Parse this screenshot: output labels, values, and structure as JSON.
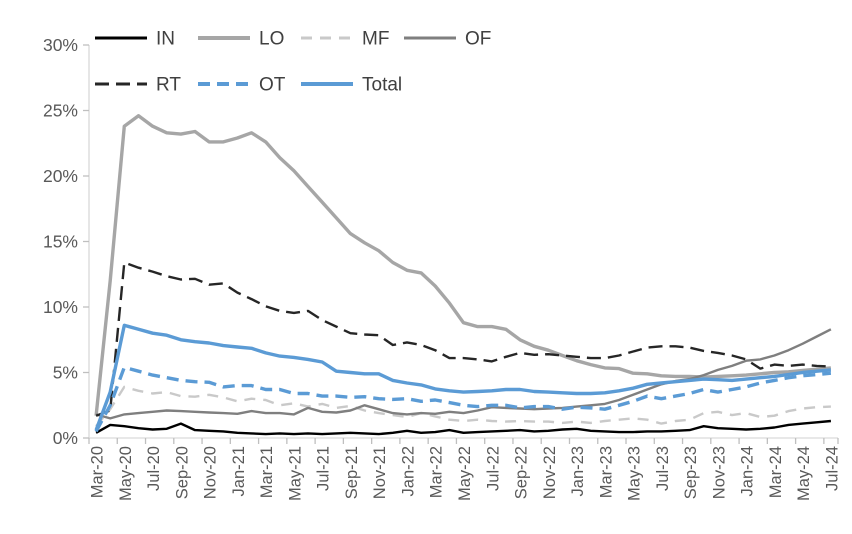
{
  "chart_data": {
    "type": "line",
    "title": "",
    "xlabel": "",
    "ylabel": "",
    "ylim": [
      0,
      30
    ],
    "ytick_step": 5,
    "ytick_labels": [
      "0%",
      "5%",
      "10%",
      "15%",
      "20%",
      "25%",
      "30%"
    ],
    "grid": false,
    "legend_position": "top",
    "legend_rows": [
      [
        0,
        1,
        2,
        3
      ],
      [
        4,
        5,
        6
      ]
    ],
    "x_label_every": 2,
    "categories": [
      "Mar-20",
      "Apr-20",
      "May-20",
      "Jun-20",
      "Jul-20",
      "Aug-20",
      "Sep-20",
      "Oct-20",
      "Nov-20",
      "Dec-20",
      "Jan-21",
      "Feb-21",
      "Mar-21",
      "Apr-21",
      "May-21",
      "Jun-21",
      "Jul-21",
      "Aug-21",
      "Sep-21",
      "Oct-21",
      "Nov-21",
      "Dec-21",
      "Jan-22",
      "Feb-22",
      "Mar-22",
      "Apr-22",
      "May-22",
      "Jun-22",
      "Jul-22",
      "Aug-22",
      "Sep-22",
      "Oct-22",
      "Nov-22",
      "Dec-22",
      "Jan-23",
      "Feb-23",
      "Mar-23",
      "Apr-23",
      "May-23",
      "Jun-23",
      "Jul-23",
      "Aug-23",
      "Sep-23",
      "Oct-23",
      "Nov-23",
      "Dec-23",
      "Jan-24",
      "Feb-24",
      "Mar-24",
      "Apr-24",
      "May-24",
      "Jun-24",
      "Jul-24"
    ],
    "series": [
      {
        "name": "IN",
        "color": "#000000",
        "dash": "",
        "width": 2.4,
        "values": [
          0.4,
          1.0,
          0.9,
          0.75,
          0.65,
          0.7,
          1.1,
          0.6,
          0.55,
          0.5,
          0.4,
          0.35,
          0.3,
          0.35,
          0.3,
          0.35,
          0.3,
          0.35,
          0.4,
          0.35,
          0.3,
          0.4,
          0.55,
          0.4,
          0.45,
          0.6,
          0.4,
          0.45,
          0.5,
          0.55,
          0.6,
          0.5,
          0.55,
          0.65,
          0.7,
          0.55,
          0.5,
          0.45,
          0.45,
          0.5,
          0.5,
          0.55,
          0.6,
          0.9,
          0.75,
          0.7,
          0.65,
          0.7,
          0.8,
          1.0,
          1.1,
          1.2,
          1.3
        ]
      },
      {
        "name": "LO",
        "color": "#a6a6a6",
        "dash": "",
        "width": 3.4,
        "values": [
          1.7,
          12.0,
          23.8,
          24.6,
          23.8,
          23.3,
          23.2,
          23.4,
          22.6,
          22.6,
          22.9,
          23.3,
          22.6,
          21.4,
          20.4,
          19.2,
          18.0,
          16.8,
          15.6,
          14.9,
          14.3,
          13.4,
          12.8,
          12.6,
          11.6,
          10.3,
          8.8,
          8.5,
          8.5,
          8.3,
          7.5,
          7.0,
          6.7,
          6.3,
          5.9,
          5.6,
          5.35,
          5.3,
          4.95,
          4.9,
          4.75,
          4.7,
          4.7,
          4.65,
          4.7,
          4.75,
          4.8,
          4.9,
          5.0,
          5.05,
          5.15,
          5.25,
          5.35
        ]
      },
      {
        "name": "MF",
        "color": "#c9c9c9",
        "dash": "11 8",
        "width": 2.4,
        "values": [
          0.9,
          2.2,
          3.9,
          3.6,
          3.4,
          3.5,
          3.2,
          3.15,
          3.3,
          3.1,
          2.8,
          3.0,
          2.9,
          2.5,
          2.65,
          2.4,
          2.6,
          2.3,
          2.45,
          2.1,
          1.9,
          1.75,
          1.6,
          1.9,
          1.65,
          1.4,
          1.3,
          1.4,
          1.3,
          1.25,
          1.3,
          1.25,
          1.25,
          1.15,
          1.25,
          1.15,
          1.3,
          1.4,
          1.5,
          1.4,
          1.1,
          1.3,
          1.4,
          1.9,
          2.0,
          1.75,
          1.9,
          1.6,
          1.7,
          2.05,
          2.25,
          2.35,
          2.4
        ]
      },
      {
        "name": "OF",
        "color": "#7f7f7f",
        "dash": "",
        "width": 2.4,
        "values": [
          1.8,
          1.5,
          1.8,
          1.9,
          2.0,
          2.1,
          2.05,
          2.0,
          1.95,
          1.9,
          1.85,
          2.05,
          1.9,
          1.9,
          1.8,
          2.3,
          2.0,
          1.95,
          2.1,
          2.5,
          2.2,
          1.9,
          1.8,
          1.9,
          1.85,
          2.0,
          1.9,
          2.1,
          2.35,
          2.3,
          2.25,
          2.2,
          2.25,
          2.3,
          2.4,
          2.5,
          2.6,
          2.9,
          3.3,
          3.7,
          4.1,
          4.35,
          4.5,
          4.8,
          5.2,
          5.5,
          5.9,
          6.0,
          6.3,
          6.7,
          7.2,
          7.75,
          8.3
        ]
      },
      {
        "name": "RT",
        "color": "#262626",
        "dash": "14 7",
        "width": 2.4,
        "values": [
          1.7,
          2.1,
          13.4,
          13.0,
          12.7,
          12.35,
          12.1,
          12.15,
          11.7,
          11.8,
          11.1,
          10.6,
          10.05,
          9.7,
          9.55,
          9.7,
          9.0,
          8.5,
          8.0,
          7.9,
          7.85,
          7.1,
          7.3,
          7.1,
          6.7,
          6.1,
          6.1,
          6.0,
          5.85,
          6.2,
          6.5,
          6.35,
          6.4,
          6.3,
          6.2,
          6.1,
          6.1,
          6.3,
          6.6,
          6.9,
          7.0,
          7.0,
          6.9,
          6.65,
          6.5,
          6.3,
          6.0,
          5.3,
          5.6,
          5.5,
          5.6,
          5.5,
          5.45
        ]
      },
      {
        "name": "OT",
        "color": "#5b9bd5",
        "dash": "12 7",
        "width": 3.4,
        "values": [
          0.5,
          2.5,
          5.4,
          5.1,
          4.8,
          4.6,
          4.4,
          4.3,
          4.25,
          3.9,
          4.0,
          4.0,
          3.7,
          3.7,
          3.4,
          3.4,
          3.2,
          3.2,
          3.1,
          3.15,
          3.0,
          2.95,
          3.0,
          2.8,
          2.9,
          2.7,
          2.5,
          2.4,
          2.5,
          2.5,
          2.3,
          2.4,
          2.4,
          2.2,
          2.35,
          2.3,
          2.2,
          2.5,
          2.8,
          3.2,
          3.0,
          3.2,
          3.4,
          3.7,
          3.5,
          3.7,
          3.9,
          4.2,
          4.4,
          4.6,
          4.75,
          4.85,
          4.95
        ]
      },
      {
        "name": "Total",
        "color": "#5b9bd5",
        "dash": "",
        "width": 3.4,
        "values": [
          0.6,
          3.5,
          8.6,
          8.3,
          8.0,
          7.85,
          7.5,
          7.35,
          7.25,
          7.05,
          6.95,
          6.85,
          6.5,
          6.25,
          6.15,
          6.0,
          5.8,
          5.1,
          5.0,
          4.9,
          4.9,
          4.4,
          4.2,
          4.05,
          3.75,
          3.6,
          3.5,
          3.55,
          3.6,
          3.7,
          3.7,
          3.55,
          3.5,
          3.45,
          3.4,
          3.4,
          3.45,
          3.6,
          3.8,
          4.1,
          4.2,
          4.3,
          4.4,
          4.5,
          4.45,
          4.4,
          4.5,
          4.6,
          4.7,
          4.85,
          5.0,
          5.1,
          5.2
        ]
      }
    ],
    "draw_order": [
      1,
      2,
      3,
      4,
      0,
      5,
      6
    ],
    "colors": {
      "axis_text": "#595959",
      "legend_text": "#404040",
      "axis_line": "#d9d9d9",
      "tick": "#bfbfbf",
      "background": "#ffffff"
    }
  }
}
